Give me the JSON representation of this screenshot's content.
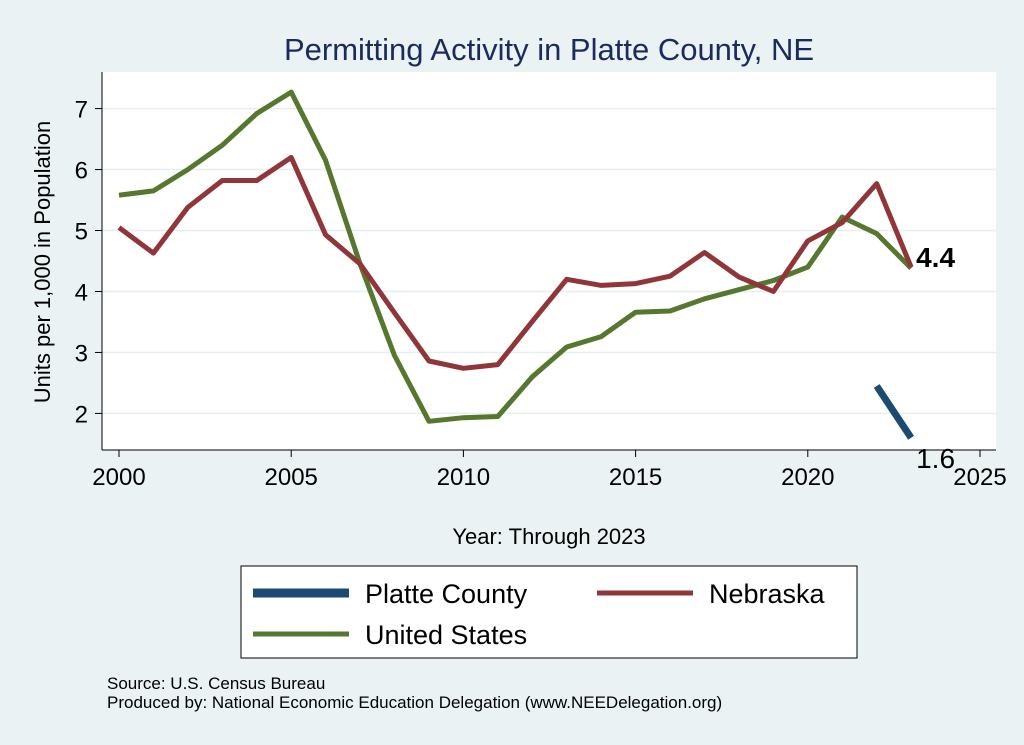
{
  "chart_data": {
    "type": "line",
    "title": "Permitting Activity in Platte County, NE",
    "xlabel": "Year: Through 2023",
    "ylabel": "Units per 1,000 in Population",
    "xlim": [
      2000,
      2025
    ],
    "ylim": [
      1.4,
      7.6
    ],
    "x_ticks": [
      2000,
      2005,
      2010,
      2015,
      2020,
      2025
    ],
    "y_ticks": [
      2,
      3,
      4,
      5,
      6,
      7
    ],
    "grid": true,
    "legend_position": "bottom",
    "series": [
      {
        "name": "Platte County",
        "color": "#1b4a72",
        "x": [
          2022,
          2023
        ],
        "values": [
          2.45,
          1.6
        ],
        "end_label": "1.6"
      },
      {
        "name": "Nebraska",
        "color": "#903639",
        "x": [
          2000,
          2001,
          2002,
          2003,
          2004,
          2005,
          2006,
          2007,
          2008,
          2009,
          2010,
          2011,
          2012,
          2013,
          2014,
          2015,
          2016,
          2017,
          2018,
          2019,
          2020,
          2021,
          2022,
          2023
        ],
        "values": [
          5.05,
          4.63,
          5.38,
          5.82,
          5.82,
          6.2,
          4.93,
          4.45,
          3.65,
          2.86,
          2.74,
          2.8,
          3.51,
          4.2,
          4.1,
          4.13,
          4.25,
          4.64,
          4.24,
          4.0,
          4.83,
          5.13,
          5.77,
          4.4
        ],
        "end_label": "4.4"
      },
      {
        "name": "United States",
        "color": "#55782e",
        "x": [
          2000,
          2001,
          2002,
          2003,
          2004,
          2005,
          2006,
          2007,
          2008,
          2009,
          2010,
          2011,
          2012,
          2013,
          2014,
          2015,
          2016,
          2017,
          2018,
          2019,
          2020,
          2021,
          2022,
          2023
        ],
        "values": [
          5.58,
          5.65,
          6.0,
          6.4,
          6.92,
          7.27,
          6.15,
          4.45,
          2.95,
          1.87,
          1.93,
          1.95,
          2.6,
          3.09,
          3.26,
          3.66,
          3.68,
          3.88,
          4.03,
          4.18,
          4.4,
          5.22,
          4.95,
          4.38
        ]
      }
    ],
    "legend_order": [
      "Platte County",
      "Nebraska",
      "United States"
    ],
    "source_note": "Source: U.S. Census Bureau",
    "producer_note": "Produced by: National Economic Education Delegation (www.NEEDelegation.org)"
  }
}
